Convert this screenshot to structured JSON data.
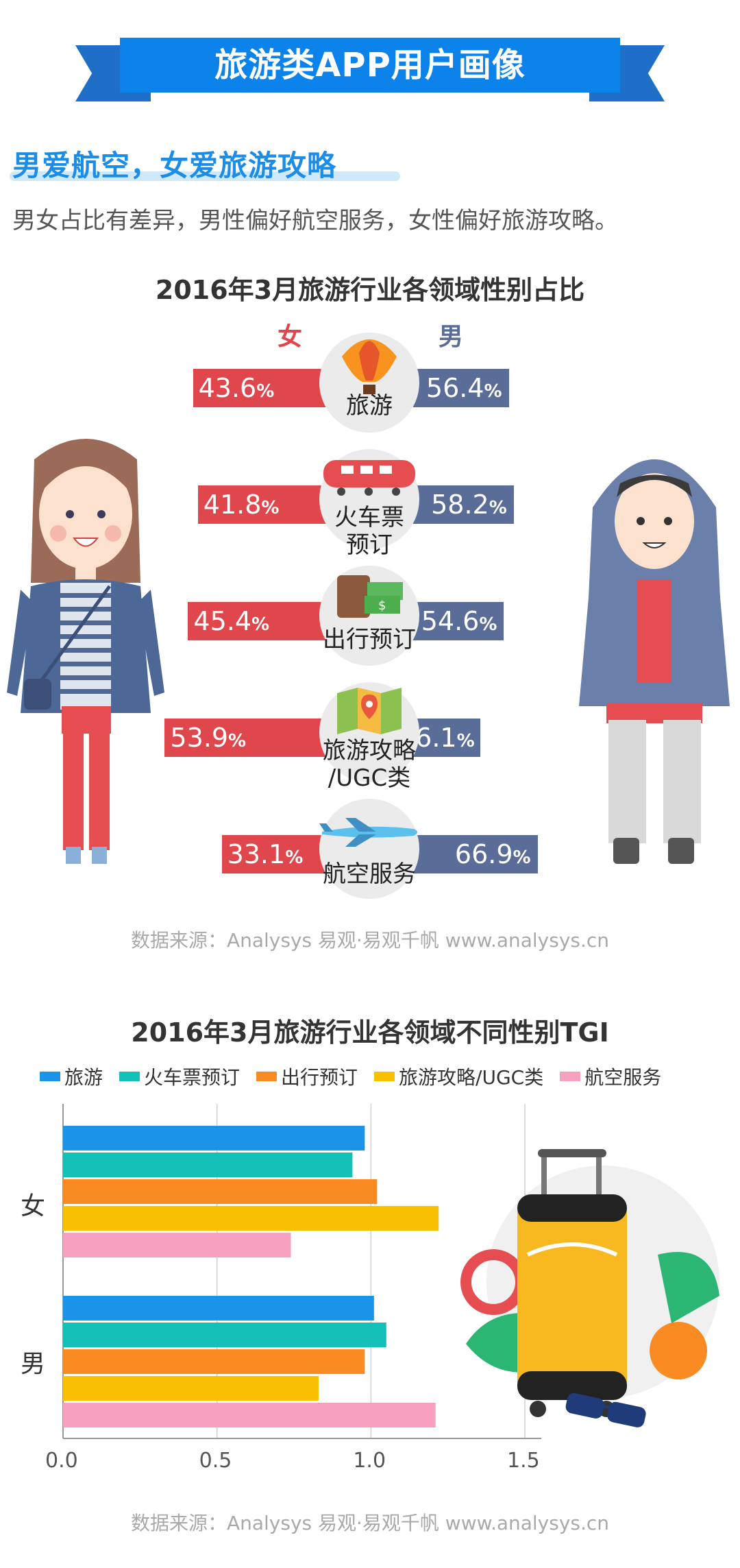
{
  "banner": {
    "title": "旅游类APP用户画像"
  },
  "section": {
    "title": "男爱航空，女爱旅游攻略",
    "description": "男女占比有差异，男性偏好航空服务，女性偏好旅游攻略。"
  },
  "chart_data": [
    {
      "type": "bar",
      "title": "2016年3月旅游行业各领域性别占比",
      "categories": [
        "旅游",
        "火车票预订",
        "出行预订",
        "旅游攻略/UGC类",
        "航空服务"
      ],
      "series": [
        {
          "name": "女",
          "values": [
            43.6,
            41.8,
            45.4,
            53.9,
            33.1
          ],
          "display": [
            "43.6",
            "41.8",
            "45.4",
            "53.9",
            "33.1"
          ],
          "color": "#e0474c"
        },
        {
          "name": "男",
          "values": [
            56.4,
            58.2,
            54.6,
            46.1,
            66.9
          ],
          "display": [
            "56.4",
            "58.2",
            "54.6",
            "46.1",
            "66.9"
          ],
          "color": "#5a6d99"
        }
      ],
      "unit": "%",
      "source": "数据来源：Analysys 易观·易观千帆 www.analysys.cn"
    },
    {
      "type": "bar",
      "orientation": "horizontal",
      "title": "2016年3月旅游行业各领域不同性别TGI",
      "categories": [
        "女",
        "男"
      ],
      "series": [
        {
          "name": "旅游",
          "color": "#1a94e8",
          "values": [
            0.98,
            1.01
          ]
        },
        {
          "name": "火车票预订",
          "color": "#13c1b8",
          "values": [
            0.94,
            1.05
          ]
        },
        {
          "name": "出行预订",
          "color": "#f98b22",
          "values": [
            1.02,
            0.98
          ]
        },
        {
          "name": "旅游攻略/UGC类",
          "color": "#f8c000",
          "values": [
            1.22,
            0.83
          ]
        },
        {
          "name": "航空服务",
          "color": "#f7a0c0",
          "values": [
            0.74,
            1.21
          ]
        }
      ],
      "xlim": [
        0,
        1.5
      ],
      "xticks": [
        "0.0",
        "0.5",
        "1.0",
        "1.5"
      ],
      "grid": "vertical",
      "source": "数据来源：Analysys 易观·易观千帆 www.analysys.cn"
    }
  ]
}
